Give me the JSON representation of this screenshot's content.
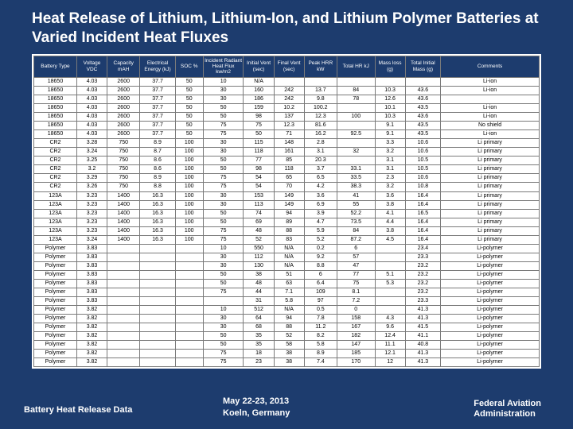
{
  "title": "Heat Release of Lithium, Lithium-Ion, and Lithium Polymer Batteries at Varied Incident Heat Fluxes",
  "footer": {
    "left": "Battery Heat Release Data",
    "center_line1": "May 22-23, 2013",
    "center_line2": "Koeln, Germany",
    "right_line1": "Federal Aviation",
    "right_line2": "Administration"
  },
  "table": {
    "columns": [
      "Battery Type",
      "Voltage VDC",
      "Capacity mAH",
      "Electrical Energy (kJ)",
      "SOC %",
      "Incident Radiant Heat Flux kw/m2",
      "Initial Vent (sec)",
      "Final Vent (sec)",
      "Peak HRR kW",
      "Total HR kJ",
      "Mass loss (g)",
      "Total Initial Mass (g)",
      "Comments"
    ],
    "col_widths_pct": [
      8.5,
      6,
      6.5,
      7,
      5.5,
      8,
      6,
      6,
      6.5,
      7.5,
      6,
      7,
      19.5
    ],
    "rows": [
      [
        "18650",
        "4.03",
        "2600",
        "37.7",
        "50",
        "10",
        "N/A",
        "",
        "",
        "",
        "",
        "",
        "Li-ion"
      ],
      [
        "18650",
        "4.03",
        "2600",
        "37.7",
        "50",
        "30",
        "160",
        "242",
        "13.7",
        "84",
        "10.3",
        "43.6",
        "Li-ion"
      ],
      [
        "18650",
        "4.03",
        "2600",
        "37.7",
        "50",
        "30",
        "186",
        "242",
        "9.8",
        "78",
        "12.6",
        "43.6",
        ""
      ],
      [
        "18650",
        "4.03",
        "2600",
        "37.7",
        "50",
        "50",
        "159",
        "10.2",
        "100.2",
        "",
        "10.1",
        "43.5",
        "Li-ion"
      ],
      [
        "18650",
        "4.03",
        "2600",
        "37.7",
        "50",
        "50",
        "98",
        "137",
        "12.3",
        "100",
        "10.3",
        "43.6",
        "Li-ion"
      ],
      [
        "18650",
        "4.03",
        "2600",
        "37.7",
        "50",
        "75",
        "75",
        "12.3",
        "81.6",
        "",
        "9.1",
        "43.5",
        "No shield"
      ],
      [
        "18650",
        "4.03",
        "2600",
        "37.7",
        "50",
        "75",
        "50",
        "71",
        "16.2",
        "92.5",
        "9.1",
        "43.5",
        "Li-ion"
      ],
      [
        "CR2",
        "3.28",
        "750",
        "8.9",
        "100",
        "30",
        "115",
        "148",
        "2.8",
        "",
        "3.3",
        "10.6",
        "Li primary"
      ],
      [
        "CR2",
        "3.24",
        "750",
        "8.7",
        "100",
        "30",
        "118",
        "161",
        "3.1",
        "32",
        "3.2",
        "10.6",
        "Li primary"
      ],
      [
        "CR2",
        "3.25",
        "750",
        "8.6",
        "100",
        "50",
        "77",
        "85",
        "20.3",
        "",
        "3.1",
        "10.5",
        "Li primary"
      ],
      [
        "CR2",
        "3.2",
        "750",
        "8.6",
        "100",
        "50",
        "98",
        "118",
        "3.7",
        "33.1",
        "3.1",
        "10.5",
        "Li primary"
      ],
      [
        "CR2",
        "3.29",
        "750",
        "8.9",
        "100",
        "75",
        "54",
        "65",
        "6.5",
        "33.5",
        "2.3",
        "10.6",
        "Li primary"
      ],
      [
        "CR2",
        "3.26",
        "750",
        "8.8",
        "100",
        "75",
        "54",
        "70",
        "4.2",
        "38.3",
        "3.2",
        "10.8",
        "Li primary"
      ],
      [
        "123A",
        "3.23",
        "1400",
        "16.3",
        "100",
        "30",
        "153",
        "149",
        "3.6",
        "41",
        "3.6",
        "16.4",
        "Li primary"
      ],
      [
        "123A",
        "3.23",
        "1400",
        "16.3",
        "100",
        "30",
        "113",
        "149",
        "6.9",
        "55",
        "3.8",
        "16.4",
        "Li primary"
      ],
      [
        "123A",
        "3.23",
        "1400",
        "16.3",
        "100",
        "50",
        "74",
        "94",
        "3.9",
        "52.2",
        "4.1",
        "16.5",
        "Li primary"
      ],
      [
        "123A",
        "3.23",
        "1400",
        "16.3",
        "100",
        "50",
        "69",
        "89",
        "4.7",
        "73.5",
        "4.4",
        "16.4",
        "Li primary"
      ],
      [
        "123A",
        "3.23",
        "1400",
        "16.3",
        "100",
        "75",
        "48",
        "88",
        "5.9",
        "84",
        "3.8",
        "16.4",
        "Li primary"
      ],
      [
        "123A",
        "3.24",
        "1400",
        "16.3",
        "100",
        "75",
        "52",
        "83",
        "5.2",
        "87.2",
        "4.5",
        "16.4",
        "Li primary"
      ],
      [
        "Polymer",
        "3.83",
        "",
        "",
        "",
        "10",
        "550",
        "N/A",
        "0.2",
        "6",
        "",
        "23.4",
        "Li-polymer"
      ],
      [
        "Polymer",
        "3.83",
        "",
        "",
        "",
        "30",
        "112",
        "N/A",
        "9.2",
        "57",
        "",
        "23.3",
        "Li-polymer"
      ],
      [
        "Polymer",
        "3.83",
        "",
        "",
        "",
        "30",
        "130",
        "N/A",
        "8.8",
        "47",
        "",
        "23.2",
        "Li-polymer"
      ],
      [
        "Polymer",
        "3.83",
        "",
        "",
        "",
        "50",
        "38",
        "51",
        "6",
        "77",
        "5.1",
        "23.2",
        "Li-polymer"
      ],
      [
        "Polymer",
        "3.83",
        "",
        "",
        "",
        "50",
        "48",
        "63",
        "6.4",
        "75",
        "5.3",
        "23.2",
        "Li-polymer"
      ],
      [
        "Polymer",
        "3.83",
        "",
        "",
        "",
        "75",
        "44",
        "7.1",
        "109",
        "8.1",
        "",
        "23.2",
        "Li-polymer"
      ],
      [
        "Polymer",
        "3.83",
        "",
        "",
        "",
        "",
        "31",
        "5.8",
        "97",
        "7.2",
        "",
        "23.3",
        "Li-polymer"
      ],
      [
        "Polymer",
        "3.82",
        "",
        "",
        "",
        "10",
        "512",
        "N/A",
        "0.5",
        "0",
        "",
        "41.3",
        "Li-polymer"
      ],
      [
        "Polymer",
        "3.82",
        "",
        "",
        "",
        "30",
        "64",
        "94",
        "7.8",
        "158",
        "4.3",
        "41.3",
        "Li-polymer"
      ],
      [
        "Polymer",
        "3.82",
        "",
        "",
        "",
        "30",
        "68",
        "88",
        "11.2",
        "167",
        "9.6",
        "41.5",
        "Li-polymer"
      ],
      [
        "Polymer",
        "3.82",
        "",
        "",
        "",
        "50",
        "35",
        "52",
        "8.2",
        "182",
        "12.4",
        "41.1",
        "Li-polymer"
      ],
      [
        "Polymer",
        "3.82",
        "",
        "",
        "",
        "50",
        "35",
        "58",
        "5.8",
        "147",
        "11.1",
        "40.8",
        "Li-polymer"
      ],
      [
        "Polymer",
        "3.82",
        "",
        "",
        "",
        "75",
        "18",
        "38",
        "8.9",
        "185",
        "12.1",
        "41.3",
        "Li-polymer"
      ],
      [
        "Polymer",
        "3.82",
        "",
        "",
        "",
        "75",
        "23",
        "38",
        "7.4",
        "170",
        "12",
        "41.3",
        "Li-polymer"
      ]
    ]
  }
}
